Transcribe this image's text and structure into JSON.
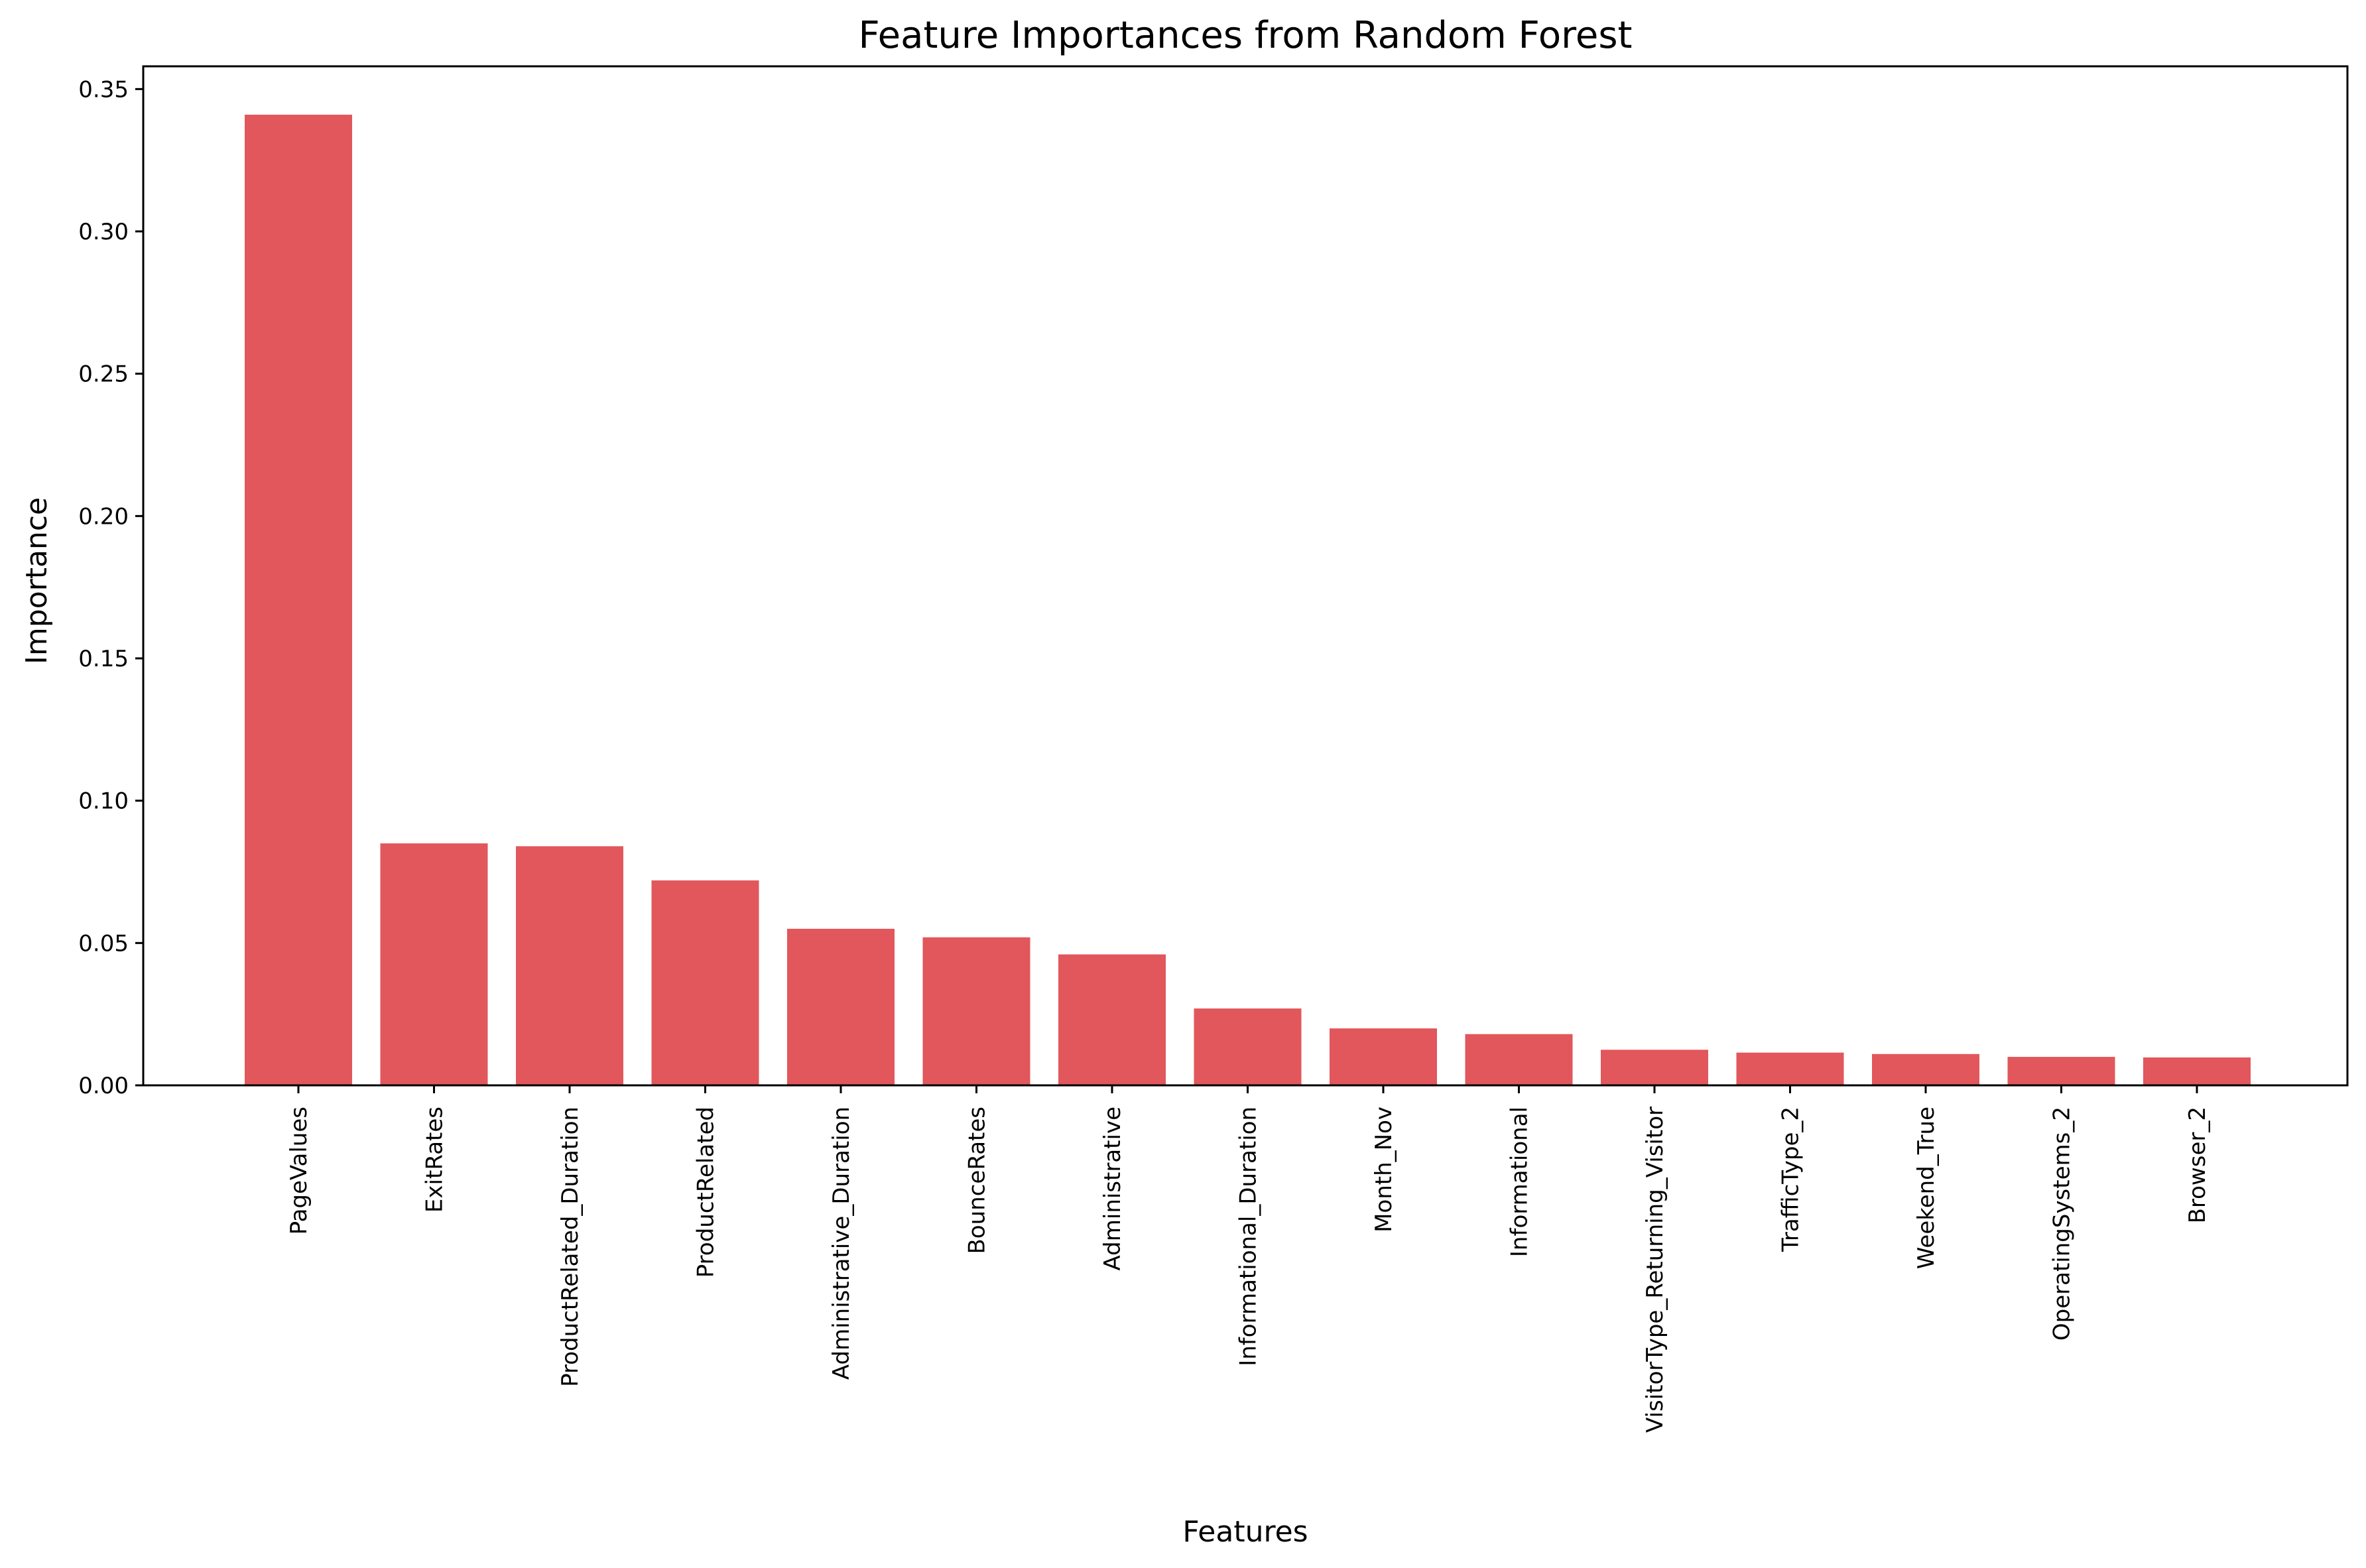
{
  "chart_data": {
    "type": "bar",
    "title": "Feature Importances from Random Forest",
    "xlabel": "Features",
    "ylabel": "Importance",
    "ylim": [
      0,
      0.358
    ],
    "yticks": [
      "0.00",
      "0.05",
      "0.10",
      "0.15",
      "0.20",
      "0.25",
      "0.30",
      "0.35"
    ],
    "grid": false,
    "bar_color": "#e1575b",
    "categories": [
      "PageValues",
      "ExitRates",
      "ProductRelated_Duration",
      "ProductRelated",
      "Administrative_Duration",
      "BounceRates",
      "Administrative",
      "Informational_Duration",
      "Month_Nov",
      "Informational",
      "VisitorType_Returning_Visitor",
      "TrafficType_2",
      "Weekend_True",
      "OperatingSystems_2",
      "Browser_2"
    ],
    "values": [
      0.341,
      0.085,
      0.084,
      0.072,
      0.055,
      0.052,
      0.046,
      0.027,
      0.02,
      0.018,
      0.0125,
      0.0115,
      0.011,
      0.01,
      0.0098
    ]
  }
}
